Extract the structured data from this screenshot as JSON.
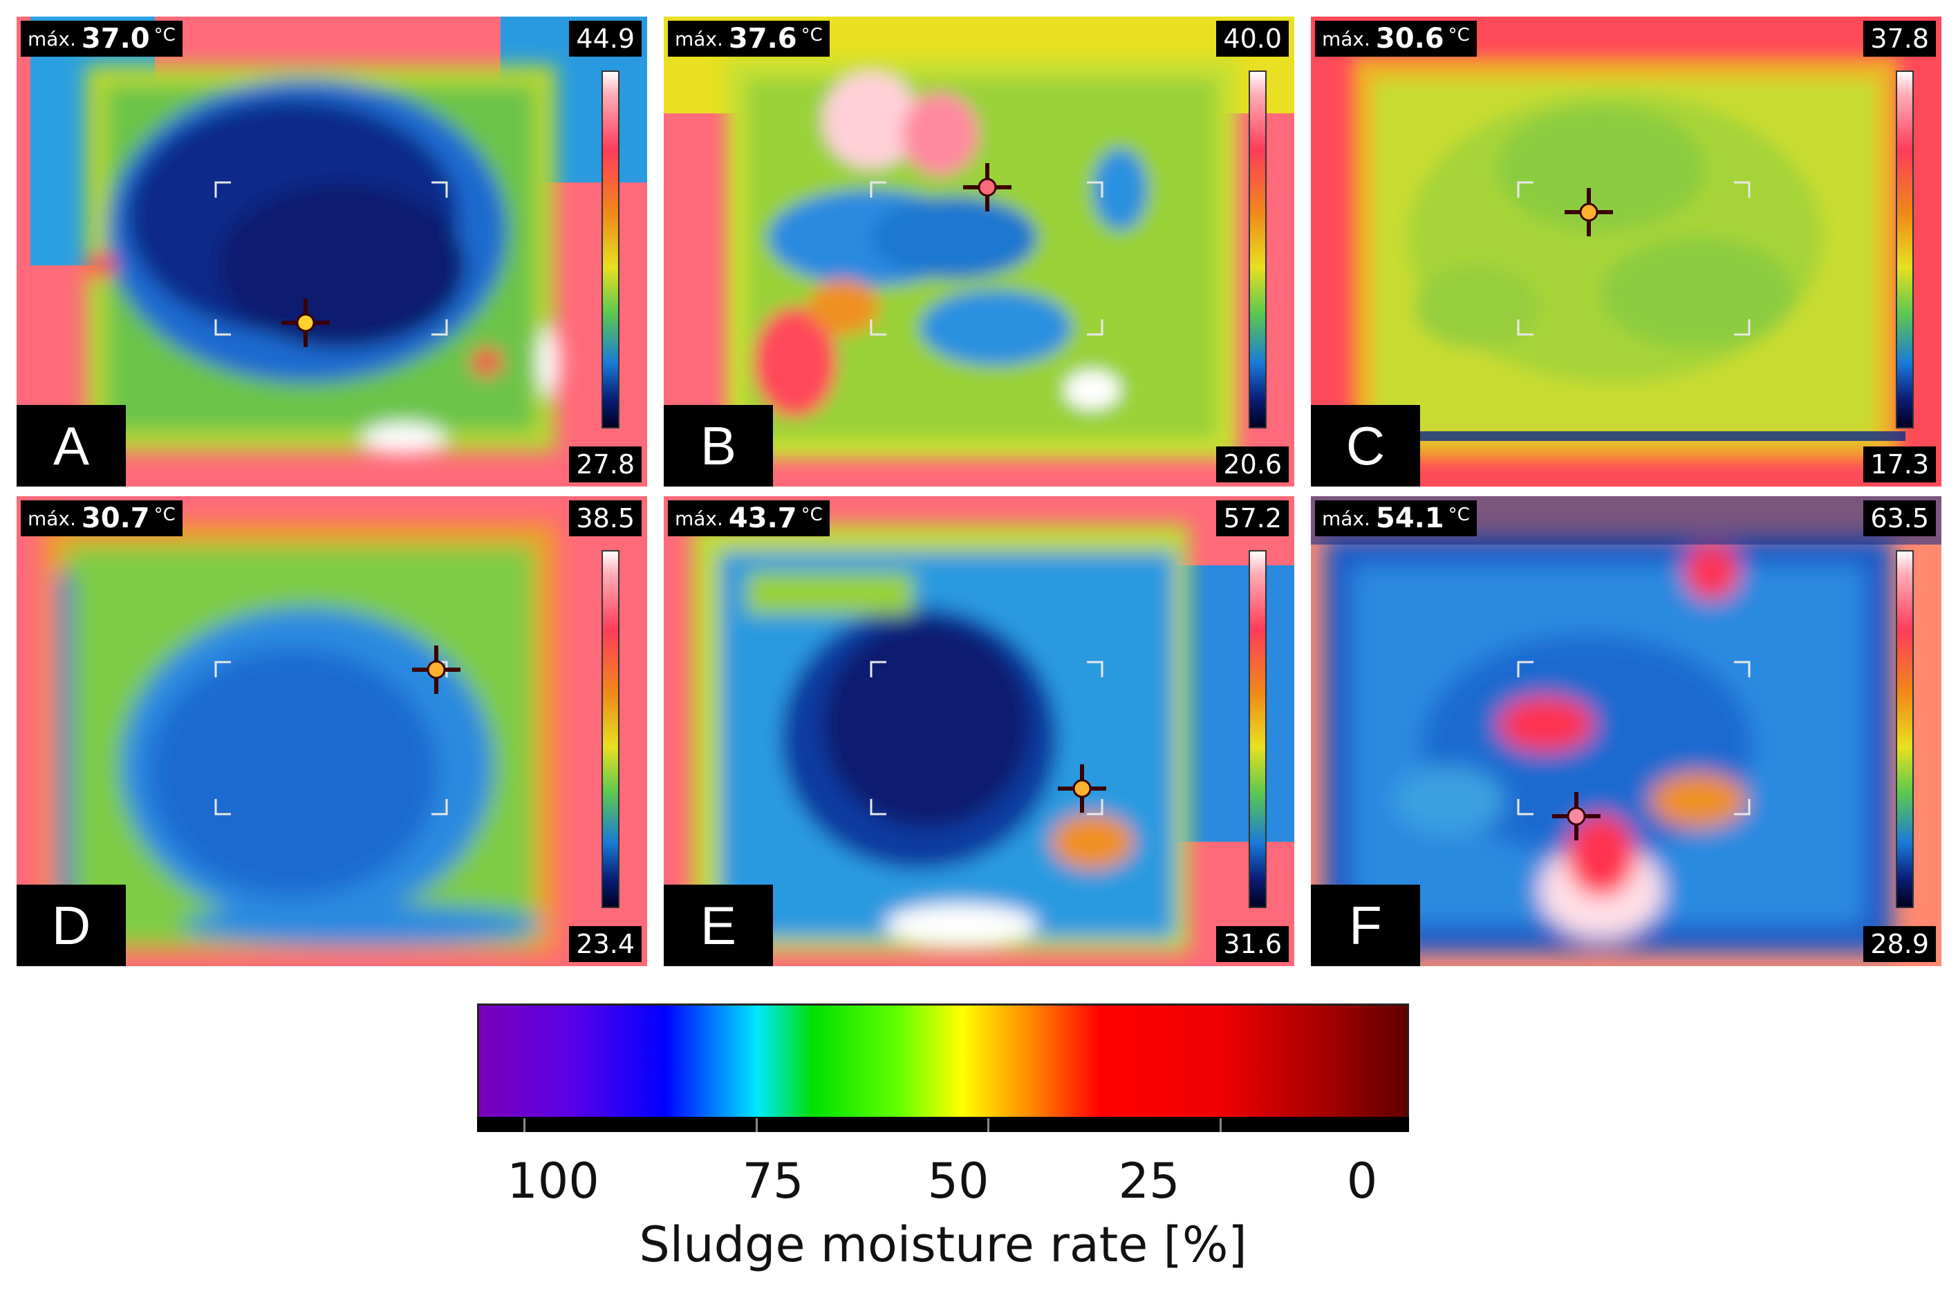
{
  "panels": [
    {
      "letter": "A",
      "max_prefix": "máx.",
      "max_value": "37.0",
      "unit": "°C",
      "scale_max": "44.9",
      "scale_min": "27.8"
    },
    {
      "letter": "B",
      "max_prefix": "máx.",
      "max_value": "37.6",
      "unit": "°C",
      "scale_max": "40.0",
      "scale_min": "20.6"
    },
    {
      "letter": "C",
      "max_prefix": "máx.",
      "max_value": "30.6",
      "unit": "°C",
      "scale_max": "37.8",
      "scale_min": "17.3"
    },
    {
      "letter": "D",
      "max_prefix": "máx.",
      "max_value": "30.7",
      "unit": "°C",
      "scale_max": "38.5",
      "scale_min": "23.4"
    },
    {
      "letter": "E",
      "max_prefix": "máx.",
      "max_value": "43.7",
      "unit": "°C",
      "scale_max": "57.2",
      "scale_min": "31.6"
    },
    {
      "letter": "F",
      "max_prefix": "máx.",
      "max_value": "54.1",
      "unit": "°C",
      "scale_max": "63.5",
      "scale_min": "28.9"
    }
  ],
  "colorbar": {
    "title": "Sludge moisture rate [%]",
    "ticks": [
      "100",
      "75",
      "50",
      "25",
      "0"
    ]
  }
}
